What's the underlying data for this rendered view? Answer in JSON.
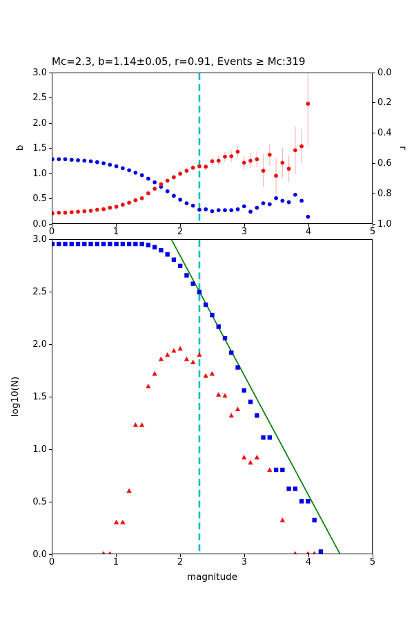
{
  "title": "Mc=2.3, b=1.14±0.05, r=0.91, Events ≥ Mc:319",
  "title_stats": {
    "mc": "2.3",
    "b_value": "1.14±0.05",
    "r_value": "0.91",
    "events_ge_mc": "319"
  },
  "colors": {
    "b_marker": "#ee1111",
    "b_errorbar": "#f7b6b6",
    "r_marker": "#0000e6",
    "cumulative_marker": "#0000e6",
    "incremental_marker": "#ee1111",
    "fit_line": "#007d00",
    "mc_line": "#00bebe",
    "axis": "#000000"
  },
  "top_plot": {
    "ylabel_left": "b",
    "ylabel_right": "r",
    "x_ticks": [
      "0",
      "1",
      "2",
      "3",
      "4",
      "5"
    ],
    "y_ticks_left": [
      "0.0",
      "0.5",
      "1.0",
      "1.5",
      "2.0",
      "2.5",
      "3.0"
    ],
    "y_ticks_right": [
      "0.0",
      "0.2",
      "0.4",
      "0.6",
      "0.8",
      "1.0"
    ]
  },
  "bottom_plot": {
    "xlabel": "magnitude",
    "ylabel": "log10(N)",
    "x_ticks": [
      "0",
      "1",
      "2",
      "3",
      "4",
      "5"
    ],
    "y_ticks": [
      "0.0",
      "0.5",
      "1.0",
      "1.5",
      "2.0",
      "2.5",
      "3.0"
    ]
  },
  "chart_data": [
    {
      "type": "scatter",
      "title": "Mc=2.3, b=1.14±0.05, r=0.91, Events ≥ Mc:319",
      "xlabel": "",
      "ylabel_left": "b",
      "ylabel_right": "r",
      "xlim": [
        0,
        5
      ],
      "ylim_left": [
        0.0,
        3.0
      ],
      "ylim_right": [
        1.0,
        0.0
      ],
      "grid": false,
      "legend": "none",
      "vline_mc": 2.3,
      "series": [
        {
          "name": "b-value vs cutoff magnitude",
          "marker": "circle",
          "color": "#ee1111",
          "y_axis": "left",
          "x": [
            0.0,
            0.1,
            0.2,
            0.3,
            0.4,
            0.5,
            0.6,
            0.7,
            0.8,
            0.9,
            1.0,
            1.1,
            1.2,
            1.3,
            1.4,
            1.5,
            1.6,
            1.7,
            1.8,
            1.9,
            2.0,
            2.1,
            2.2,
            2.3,
            2.4,
            2.5,
            2.6,
            2.7,
            2.8,
            2.9,
            3.0,
            3.1,
            3.2,
            3.3,
            3.4,
            3.5,
            3.6,
            3.7,
            3.8,
            3.9,
            4.0
          ],
          "y": [
            0.2,
            0.21,
            0.21,
            0.22,
            0.23,
            0.24,
            0.25,
            0.27,
            0.28,
            0.31,
            0.33,
            0.37,
            0.41,
            0.46,
            0.5,
            0.6,
            0.69,
            0.78,
            0.85,
            0.92,
            0.99,
            1.05,
            1.11,
            1.14,
            1.13,
            1.24,
            1.25,
            1.33,
            1.34,
            1.43,
            1.21,
            1.25,
            1.28,
            1.05,
            1.37,
            0.95,
            1.21,
            1.09,
            1.46,
            1.54,
            2.39
          ],
          "yerr": [
            0.02,
            0.02,
            0.02,
            0.02,
            0.02,
            0.02,
            0.02,
            0.02,
            0.02,
            0.03,
            0.03,
            0.03,
            0.03,
            0.03,
            0.03,
            0.04,
            0.04,
            0.04,
            0.04,
            0.05,
            0.05,
            0.05,
            0.05,
            0.05,
            0.06,
            0.08,
            0.09,
            0.1,
            0.11,
            0.12,
            0.13,
            0.15,
            0.16,
            0.33,
            0.22,
            0.35,
            0.3,
            0.27,
            0.48,
            0.34,
            0.85
          ]
        },
        {
          "name": "goodness of fit r vs cutoff magnitude",
          "marker": "circle",
          "color": "#0000e6",
          "y_axis": "right",
          "x": [
            0.0,
            0.1,
            0.2,
            0.3,
            0.4,
            0.5,
            0.6,
            0.7,
            0.8,
            0.9,
            1.0,
            1.1,
            1.2,
            1.3,
            1.4,
            1.5,
            1.6,
            1.7,
            1.8,
            1.9,
            2.0,
            2.1,
            2.2,
            2.3,
            2.4,
            2.5,
            2.6,
            2.7,
            2.8,
            2.9,
            3.0,
            3.1,
            3.2,
            3.3,
            3.4,
            3.5,
            3.6,
            3.7,
            3.8,
            3.9,
            4.0
          ],
          "y": [
            0.573,
            0.573,
            0.573,
            0.577,
            0.58,
            0.583,
            0.587,
            0.593,
            0.6,
            0.61,
            0.62,
            0.633,
            0.647,
            0.663,
            0.68,
            0.703,
            0.727,
            0.757,
            0.787,
            0.817,
            0.843,
            0.867,
            0.883,
            0.91,
            0.907,
            0.92,
            0.913,
            0.913,
            0.913,
            0.907,
            0.887,
            0.923,
            0.897,
            0.867,
            0.873,
            0.833,
            0.85,
            0.86,
            0.81,
            0.85,
            0.957
          ]
        }
      ]
    },
    {
      "type": "scatter",
      "title": "",
      "xlabel": "magnitude",
      "ylabel": "log10(N)",
      "xlim": [
        0,
        5
      ],
      "ylim": [
        0.0,
        3.0
      ],
      "grid": false,
      "legend": "none",
      "vline_mc": 2.3,
      "series": [
        {
          "name": "cumulative number of events",
          "marker": "square",
          "color": "#0000e6",
          "x": [
            0.0,
            0.1,
            0.2,
            0.3,
            0.4,
            0.5,
            0.6,
            0.7,
            0.8,
            0.9,
            1.0,
            1.1,
            1.2,
            1.3,
            1.4,
            1.5,
            1.6,
            1.7,
            1.8,
            1.9,
            2.0,
            2.1,
            2.2,
            2.3,
            2.4,
            2.5,
            2.6,
            2.7,
            2.8,
            2.9,
            3.0,
            3.1,
            3.2,
            3.3,
            3.4,
            3.5,
            3.6,
            3.7,
            3.8,
            3.9,
            4.0,
            4.1,
            4.2
          ],
          "y": [
            2.96,
            2.96,
            2.96,
            2.96,
            2.96,
            2.96,
            2.96,
            2.96,
            2.96,
            2.96,
            2.96,
            2.96,
            2.96,
            2.96,
            2.96,
            2.95,
            2.93,
            2.9,
            2.86,
            2.81,
            2.75,
            2.66,
            2.58,
            2.5,
            2.38,
            2.28,
            2.17,
            2.06,
            1.92,
            1.78,
            1.56,
            1.45,
            1.32,
            1.11,
            1.11,
            0.8,
            0.8,
            0.62,
            0.62,
            0.5,
            0.5,
            0.32,
            0.02
          ]
        },
        {
          "name": "incremental number of events",
          "marker": "triangle-up",
          "color": "#ee1111",
          "x": [
            0.8,
            0.9,
            1.0,
            1.1,
            1.2,
            1.3,
            1.4,
            1.5,
            1.6,
            1.7,
            1.8,
            1.9,
            2.0,
            2.1,
            2.2,
            2.3,
            2.4,
            2.5,
            2.6,
            2.7,
            2.8,
            2.9,
            3.0,
            3.1,
            3.2,
            3.4,
            3.6,
            3.8,
            4.0,
            4.1
          ],
          "y": [
            0.0,
            0.0,
            0.3,
            0.3,
            0.6,
            1.23,
            1.23,
            1.6,
            1.72,
            1.86,
            1.9,
            1.94,
            1.96,
            1.86,
            1.83,
            1.9,
            1.7,
            1.72,
            1.52,
            1.51,
            1.32,
            1.38,
            0.92,
            0.87,
            0.92,
            0.8,
            0.32,
            0.0,
            0.0,
            0.0
          ]
        },
        {
          "name": "Gutenberg-Richter fit line (b=1.14)",
          "marker": "line",
          "color": "#007d00",
          "x": [
            1.865,
            4.497
          ],
          "y": [
            3.0,
            0.0
          ]
        }
      ]
    }
  ]
}
